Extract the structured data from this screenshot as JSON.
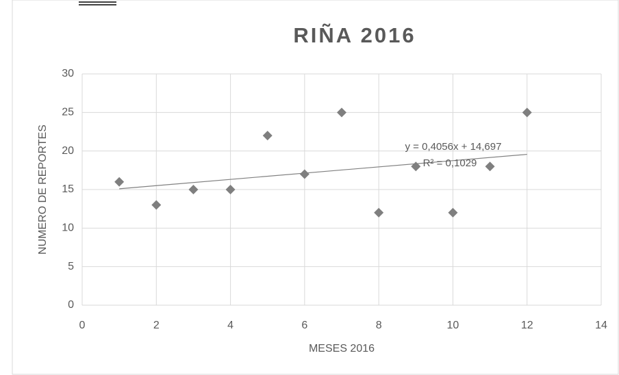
{
  "chart_data": {
    "type": "scatter",
    "title": "RIÑA 2016",
    "x_label": "MESES 2016",
    "y_label": "NUMERO DE REPORTES",
    "x": [
      1,
      2,
      3,
      4,
      5,
      6,
      7,
      8,
      9,
      10,
      11,
      12
    ],
    "values": [
      16,
      13,
      15,
      15,
      22,
      17,
      25,
      12,
      18,
      12,
      18,
      25
    ],
    "color": "#7f7f7f",
    "xlim": [
      0,
      14
    ],
    "xticks": [
      0,
      2,
      4,
      6,
      8,
      10,
      12,
      14
    ],
    "ylim": [
      0,
      30
    ],
    "yticks": [
      0,
      5,
      10,
      15,
      20,
      25,
      30
    ],
    "grid": true,
    "trendline": {
      "slope": 0.4056,
      "intercept": 14.697,
      "color": "#808080",
      "equation": "y = 0,4056x + 14,697",
      "r2": "R² = 0,1029"
    }
  }
}
